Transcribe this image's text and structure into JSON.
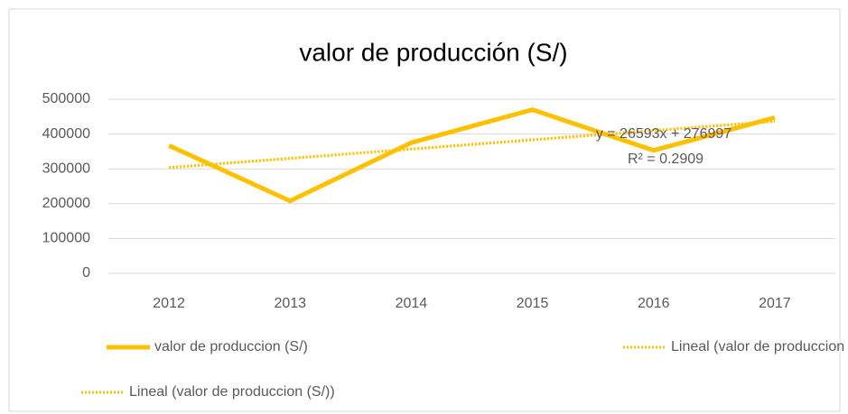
{
  "chart_data": {
    "type": "line",
    "title": "valor de producción (S/)",
    "categories": [
      "2012",
      "2013",
      "2014",
      "2015",
      "2016",
      "2017"
    ],
    "series": [
      {
        "name": "valor de produccion (S/)",
        "color": "#ffc000",
        "style": "solid",
        "values": [
          367000,
          208000,
          375000,
          470000,
          353000,
          447000
        ]
      },
      {
        "name": "Lineal (valor de produccion (S/))",
        "color": "#ffc000",
        "style": "dotted",
        "values": [
          303590,
          330183,
          356776,
          383369,
          409962,
          436555
        ]
      },
      {
        "name": "Lineal (valor de produccion (S/))",
        "color": "#ffc000",
        "style": "dotted",
        "values": [
          303590,
          330183,
          356776,
          383369,
          409962,
          436555
        ]
      }
    ],
    "annotations": [
      "y = 26593x + 276997",
      "R² = 0.2909"
    ],
    "ylim": [
      0,
      500000
    ],
    "yticks": [
      0,
      100000,
      200000,
      300000,
      400000,
      500000
    ],
    "grid": true
  }
}
